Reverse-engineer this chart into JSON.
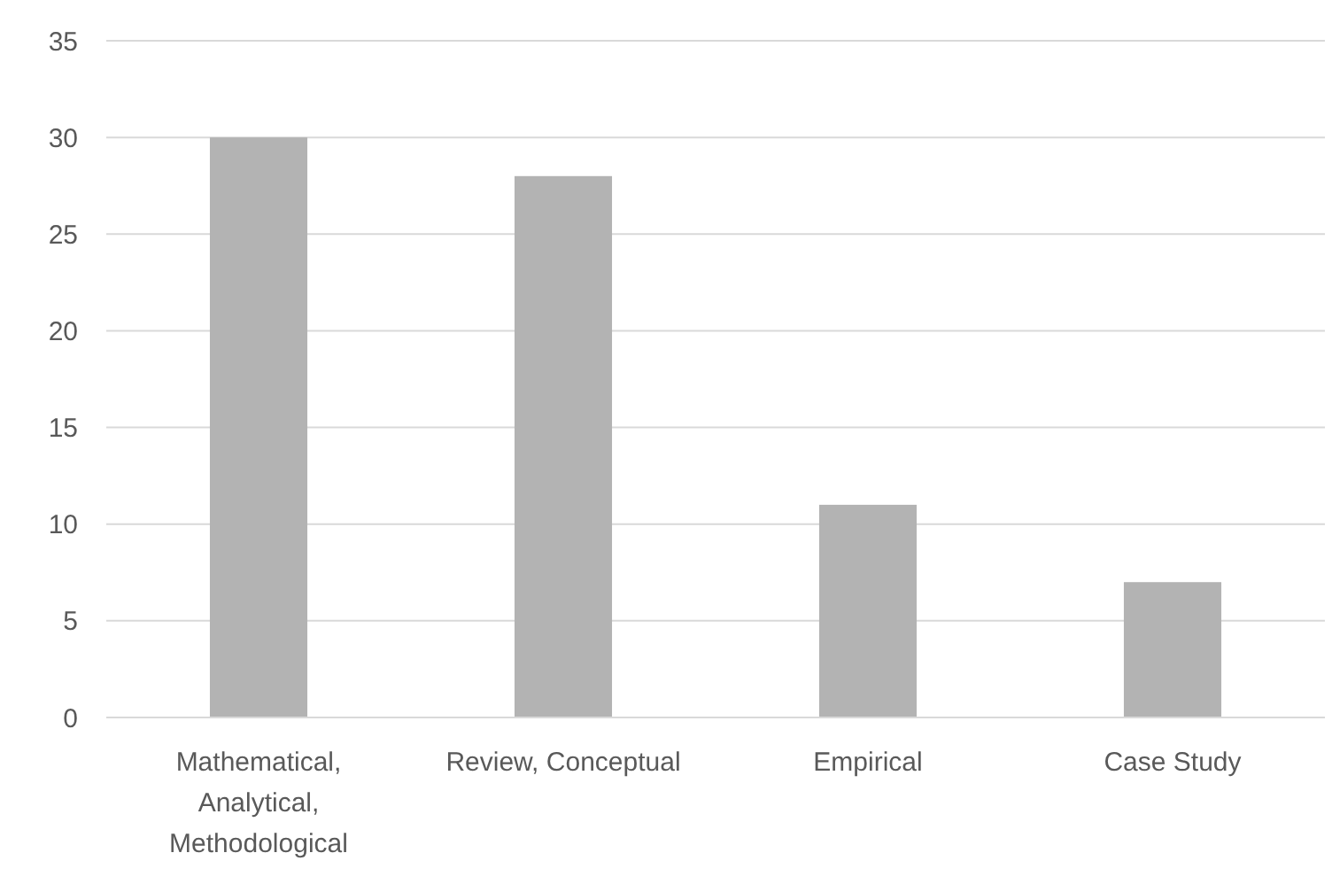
{
  "chart_data": {
    "type": "bar",
    "categories": [
      "Mathematical, Analytical, Methodological",
      "Review, Conceptual",
      "Empirical",
      "Case Study"
    ],
    "values": [
      30,
      28,
      11,
      7
    ],
    "color": "#b3b3b3",
    "ylim": [
      0,
      35
    ],
    "yticks": [
      0,
      5,
      10,
      15,
      20,
      25,
      30,
      35
    ],
    "grid": "y"
  }
}
